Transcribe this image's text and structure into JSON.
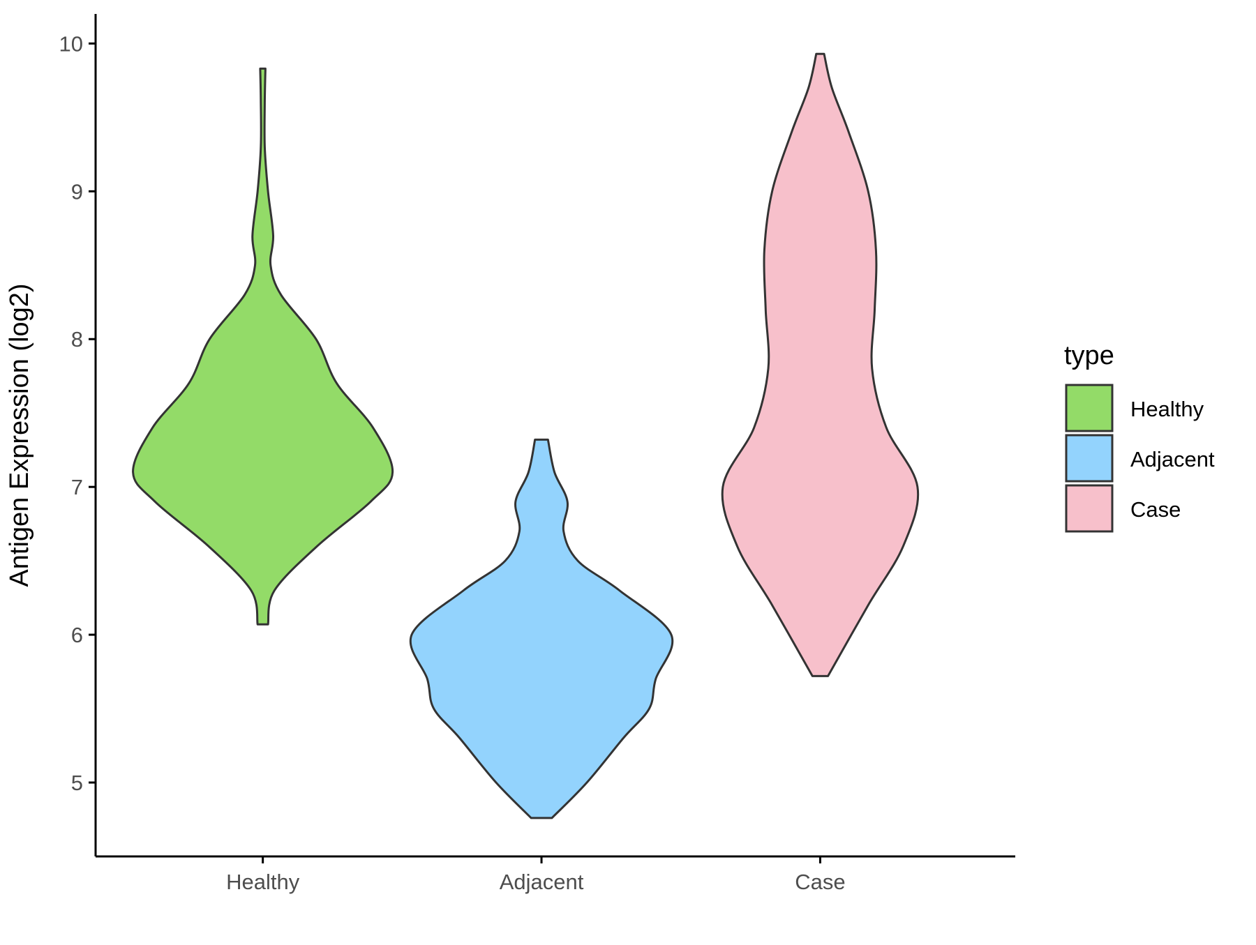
{
  "chart_data": {
    "type": "violin",
    "xlabel": "",
    "ylabel": "Antigen Expression (log2)",
    "ylim": [
      4.5,
      10.2
    ],
    "yticks": [
      5,
      6,
      7,
      8,
      9,
      10
    ],
    "categories": [
      "Healthy",
      "Adjacent",
      "Case"
    ],
    "legend": {
      "title": "type",
      "position": "right",
      "entries": [
        "Healthy",
        "Adjacent",
        "Case"
      ]
    },
    "grid": false,
    "colors": {
      "Healthy": "#93DB68",
      "Adjacent": "#93D3FD",
      "Case": "#F7C0CB",
      "outline": "#333333"
    },
    "series": [
      {
        "name": "Healthy",
        "min": 6.07,
        "max": 9.83,
        "density": [
          [
            6.07,
            0.04
          ],
          [
            6.3,
            0.09
          ],
          [
            6.6,
            0.42
          ],
          [
            6.9,
            0.83
          ],
          [
            7.1,
            1.0
          ],
          [
            7.4,
            0.85
          ],
          [
            7.7,
            0.57
          ],
          [
            8.0,
            0.41
          ],
          [
            8.3,
            0.14
          ],
          [
            8.5,
            0.06
          ],
          [
            8.7,
            0.08
          ],
          [
            9.0,
            0.04
          ],
          [
            9.3,
            0.015
          ],
          [
            9.6,
            0.015
          ],
          [
            9.83,
            0.02
          ]
        ]
      },
      {
        "name": "Adjacent",
        "min": 4.76,
        "max": 7.32,
        "density": [
          [
            4.76,
            0.08
          ],
          [
            5.0,
            0.35
          ],
          [
            5.3,
            0.63
          ],
          [
            5.5,
            0.83
          ],
          [
            5.7,
            0.88
          ],
          [
            6.0,
            1.0
          ],
          [
            6.3,
            0.6
          ],
          [
            6.5,
            0.28
          ],
          [
            6.7,
            0.17
          ],
          [
            6.9,
            0.2
          ],
          [
            7.1,
            0.1
          ],
          [
            7.32,
            0.05
          ]
        ]
      },
      {
        "name": "Case",
        "min": 5.72,
        "max": 9.93,
        "density": [
          [
            5.72,
            0.06
          ],
          [
            6.2,
            0.37
          ],
          [
            6.6,
            0.64
          ],
          [
            7.0,
            0.75
          ],
          [
            7.4,
            0.51
          ],
          [
            7.8,
            0.4
          ],
          [
            8.2,
            0.42
          ],
          [
            8.6,
            0.43
          ],
          [
            9.0,
            0.37
          ],
          [
            9.4,
            0.22
          ],
          [
            9.7,
            0.09
          ],
          [
            9.93,
            0.03
          ]
        ]
      }
    ]
  }
}
